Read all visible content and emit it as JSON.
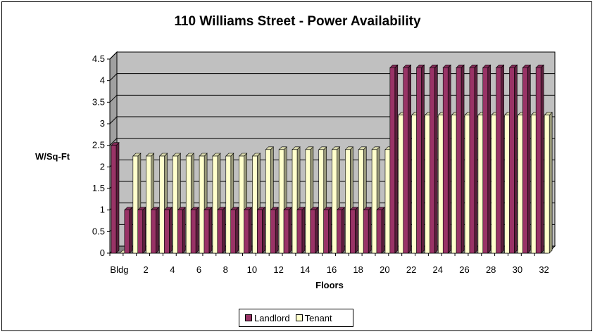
{
  "chart_data": {
    "type": "bar",
    "title": "110 Williams Street - Power Availability",
    "xlabel": "Floors",
    "ylabel": "W/Sq-Ft",
    "ylim": [
      0,
      4.5
    ],
    "yticks": [
      "0",
      "0.5",
      "1",
      "1.5",
      "2",
      "2.5",
      "3",
      "3.5",
      "4",
      "4.5"
    ],
    "categories": [
      "Bldg",
      "1",
      "2",
      "3",
      "4",
      "5",
      "6",
      "7",
      "8",
      "9",
      "10",
      "11",
      "12",
      "13",
      "14",
      "15",
      "16",
      "17",
      "18",
      "19",
      "20",
      "21",
      "22",
      "23",
      "24",
      "25",
      "26",
      "27",
      "28",
      "29",
      "30",
      "31",
      "32"
    ],
    "xtick_labels": [
      "Bldg",
      "2",
      "4",
      "6",
      "8",
      "10",
      "12",
      "14",
      "16",
      "18",
      "20",
      "22",
      "24",
      "26",
      "28",
      "30",
      "32"
    ],
    "series": [
      {
        "name": "Landlord",
        "color": "#993366",
        "values": [
          2.5,
          1,
          1,
          1,
          1,
          1,
          1,
          1,
          1,
          1,
          1,
          1,
          1,
          1,
          1,
          1,
          1,
          1,
          1,
          1,
          1,
          4.3,
          4.3,
          4.3,
          4.3,
          4.3,
          4.3,
          4.3,
          4.3,
          4.3,
          4.3,
          4.3,
          4.3
        ]
      },
      {
        "name": "Tenant",
        "color": "#ffffcc",
        "values": [
          0,
          2.25,
          2.25,
          2.25,
          2.25,
          2.25,
          2.25,
          2.25,
          2.25,
          2.25,
          2.25,
          2.4,
          2.4,
          2.4,
          2.4,
          2.4,
          2.4,
          2.4,
          2.4,
          2.4,
          2.4,
          3.2,
          3.2,
          3.2,
          3.2,
          3.2,
          3.2,
          3.2,
          3.2,
          3.2,
          3.2,
          3.2,
          3.2
        ]
      }
    ],
    "legend_position": "bottom",
    "grid": true
  }
}
